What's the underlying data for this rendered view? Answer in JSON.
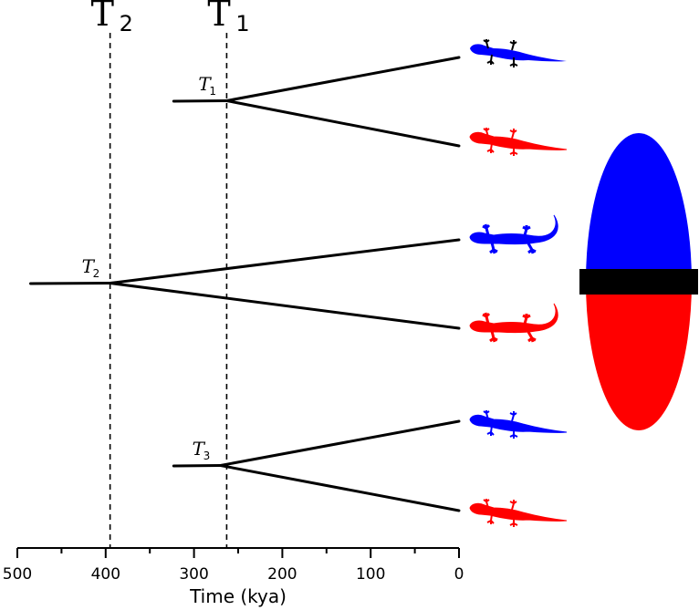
{
  "axis": {
    "title": "Time (kya)",
    "min": 0,
    "max": 500,
    "ticks": [
      500,
      400,
      300,
      200,
      100,
      0
    ],
    "tick_labels": [
      "500",
      "400",
      "300",
      "200",
      "100",
      "0"
    ]
  },
  "reference_lines": [
    {
      "symbol": "Τ",
      "sub": "2",
      "time": 395
    },
    {
      "symbol": "Τ",
      "sub": "1",
      "time": 263
    }
  ],
  "splits": [
    {
      "symbol": "T",
      "sub": "1",
      "time": 263,
      "stem_start": 323
    },
    {
      "symbol": "T",
      "sub": "2",
      "time": 395,
      "stem_start": 485
    },
    {
      "symbol": "T",
      "sub": "3",
      "time": 270,
      "stem_start": 323
    }
  ],
  "colors": {
    "blue": "#0000ff",
    "red": "#ff0000",
    "bar": "#000000"
  },
  "icons": [
    "gecko-blue",
    "gecko-red"
  ]
}
